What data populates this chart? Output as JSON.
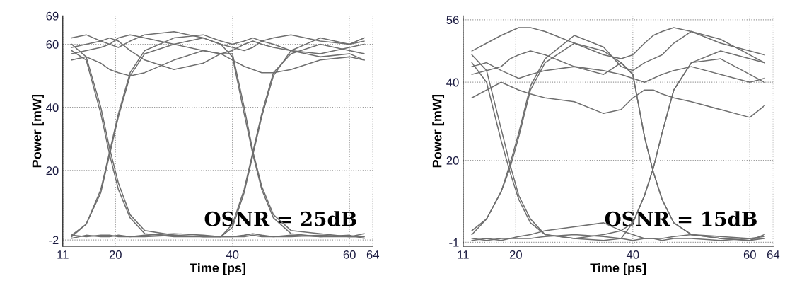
{
  "chart_data": [
    {
      "type": "line",
      "xlabel": "Time [ps]",
      "ylabel": "Power [mW]",
      "annotations": [
        "OSNR = 25dB"
      ],
      "xlim": [
        11,
        64
      ],
      "ylim": [
        -4,
        69
      ],
      "xticks": [
        11,
        20,
        40,
        60,
        64
      ],
      "yticks": [
        -2,
        20,
        40,
        60,
        69
      ],
      "grid": true,
      "marker": "none",
      "line_style": "solid",
      "x": [
        12.5,
        15,
        17.5,
        19,
        20.5,
        22.5,
        25,
        30,
        35,
        38,
        40,
        42,
        43.5,
        45,
        47,
        50,
        55,
        60,
        62.5
      ],
      "series": [
        {
          "color": "#6e6e6e",
          "values": [
            62,
            63,
            61,
            60,
            59,
            61,
            63,
            64,
            62,
            60,
            59,
            58,
            59,
            61,
            62,
            63,
            61,
            60,
            62
          ]
        },
        {
          "color": "#6e6e6e",
          "values": [
            57,
            58,
            59,
            60,
            62,
            63,
            62,
            60,
            58,
            57,
            58,
            60,
            61,
            60,
            59,
            58,
            56,
            57,
            55
          ]
        },
        {
          "color": "#6e6e6e",
          "values": [
            -0.5,
            -1,
            -0.5,
            -0.5,
            -1,
            -1,
            -0.5,
            0,
            -0.5,
            -1,
            -1,
            -0.5,
            0,
            -0.5,
            -1,
            -1,
            -0.5,
            -1,
            0
          ]
        },
        {
          "color": "#6e6e6e",
          "values": [
            58,
            55,
            38,
            25,
            14,
            5,
            0,
            -1,
            -1,
            -1,
            2,
            13,
            25,
            37,
            50,
            58,
            62,
            60,
            61
          ]
        },
        {
          "color": "#6e6e6e",
          "values": [
            -1,
            3,
            13,
            25,
            37,
            50,
            57,
            60,
            62,
            60,
            56,
            38,
            25,
            14,
            5,
            0,
            -1,
            -1,
            -1
          ]
        },
        {
          "color": "#6e6e6e",
          "values": [
            60,
            56,
            40,
            27,
            16,
            6,
            1,
            -0.5,
            -1,
            -1,
            -1,
            -1,
            -0.5,
            -1,
            -1,
            -0.5,
            -1,
            -0.5,
            -1.5
          ]
        },
        {
          "color": "#6e6e6e",
          "values": [
            -0.5,
            3,
            14,
            26,
            38,
            51,
            58,
            62,
            63,
            61,
            60,
            61,
            62,
            61,
            60,
            58,
            57,
            59,
            60
          ]
        },
        {
          "color": "#6e6e6e",
          "values": [
            59,
            60,
            61,
            62,
            61,
            58,
            55,
            52,
            54,
            57,
            57,
            40,
            26,
            15,
            6,
            1,
            0,
            -1,
            -1
          ]
        },
        {
          "color": "#6e6e6e",
          "values": [
            -1.5,
            -0.5,
            -1,
            -1,
            -0.5,
            -1,
            -1,
            -0.5,
            -1,
            -1,
            3,
            14,
            26,
            38,
            51,
            57,
            60,
            58,
            57
          ]
        },
        {
          "color": "#6e6e6e",
          "values": [
            55,
            56,
            54,
            52,
            51,
            50,
            51,
            55,
            58,
            57,
            55,
            53,
            52,
            51,
            51,
            52,
            55,
            56,
            55
          ]
        }
      ]
    },
    {
      "type": "line",
      "xlabel": "Time [ps]",
      "ylabel": "Power [mW]",
      "annotations": [
        "OSNR = 15dB"
      ],
      "xlim": [
        11,
        64
      ],
      "ylim": [
        -2,
        57
      ],
      "xticks": [
        11,
        20,
        40,
        60,
        64
      ],
      "yticks": [
        -1,
        20,
        40,
        56
      ],
      "grid": true,
      "marker": "none",
      "line_style": "solid",
      "x": [
        12.5,
        15,
        17.5,
        19,
        20.5,
        22.5,
        25,
        30,
        35,
        38,
        40,
        42,
        43.5,
        45,
        47,
        50,
        55,
        60,
        62.5
      ],
      "series": [
        {
          "color": "#6e6e6e",
          "values": [
            48,
            50,
            52,
            53,
            54,
            54,
            53,
            50,
            47,
            46,
            47,
            50,
            52,
            53,
            54,
            53,
            50,
            48,
            47
          ]
        },
        {
          "color": "#6e6e6e",
          "values": [
            36,
            38,
            40,
            39,
            38,
            37,
            36,
            35,
            32,
            33,
            36,
            38,
            38,
            37,
            36,
            35,
            33,
            31,
            34
          ]
        },
        {
          "color": "#6e6e6e",
          "values": [
            45,
            40,
            25,
            17,
            10,
            4,
            1,
            0,
            -0.5,
            0,
            4,
            11,
            18,
            27,
            38,
            45,
            48,
            46,
            45
          ]
        },
        {
          "color": "#6e6e6e",
          "values": [
            1,
            5,
            12,
            18,
            26,
            38,
            45,
            50,
            48,
            45,
            42,
            26,
            17,
            10,
            4,
            1,
            0,
            -0.5,
            0
          ]
        },
        {
          "color": "#6e6e6e",
          "values": [
            47,
            43,
            28,
            19,
            11,
            5,
            1,
            0,
            1,
            2,
            1,
            0,
            0,
            -0.5,
            0,
            0,
            -0.5,
            0,
            0
          ]
        },
        {
          "color": "#6e6e6e",
          "values": [
            2,
            5,
            12,
            19,
            27,
            39,
            46,
            52,
            49,
            44,
            43,
            45,
            46,
            47,
            50,
            53,
            51,
            47,
            45
          ]
        },
        {
          "color": "#6e6e6e",
          "values": [
            42,
            43,
            44,
            46,
            47,
            48,
            47,
            44,
            42,
            45,
            42,
            26,
            17,
            10,
            4,
            1,
            0,
            -0.5,
            1
          ]
        },
        {
          "color": "#6e6e6e",
          "values": [
            0,
            -0.5,
            0,
            0,
            0.5,
            1,
            2,
            3,
            4,
            2,
            4,
            11,
            18,
            27,
            38,
            45,
            46,
            42,
            40
          ]
        },
        {
          "color": "#6e6e6e",
          "values": [
            -0.5,
            0,
            -0.5,
            0,
            0,
            0,
            0.5,
            1,
            0.5,
            0,
            -0.5,
            0,
            0,
            0,
            0.5,
            1,
            0.5,
            0,
            0.5
          ]
        },
        {
          "color": "#6e6e6e",
          "values": [
            44,
            45,
            43,
            42,
            41,
            42,
            43,
            44,
            43,
            42,
            41,
            40,
            41,
            42,
            43,
            44,
            42,
            40,
            41
          ]
        }
      ]
    }
  ]
}
